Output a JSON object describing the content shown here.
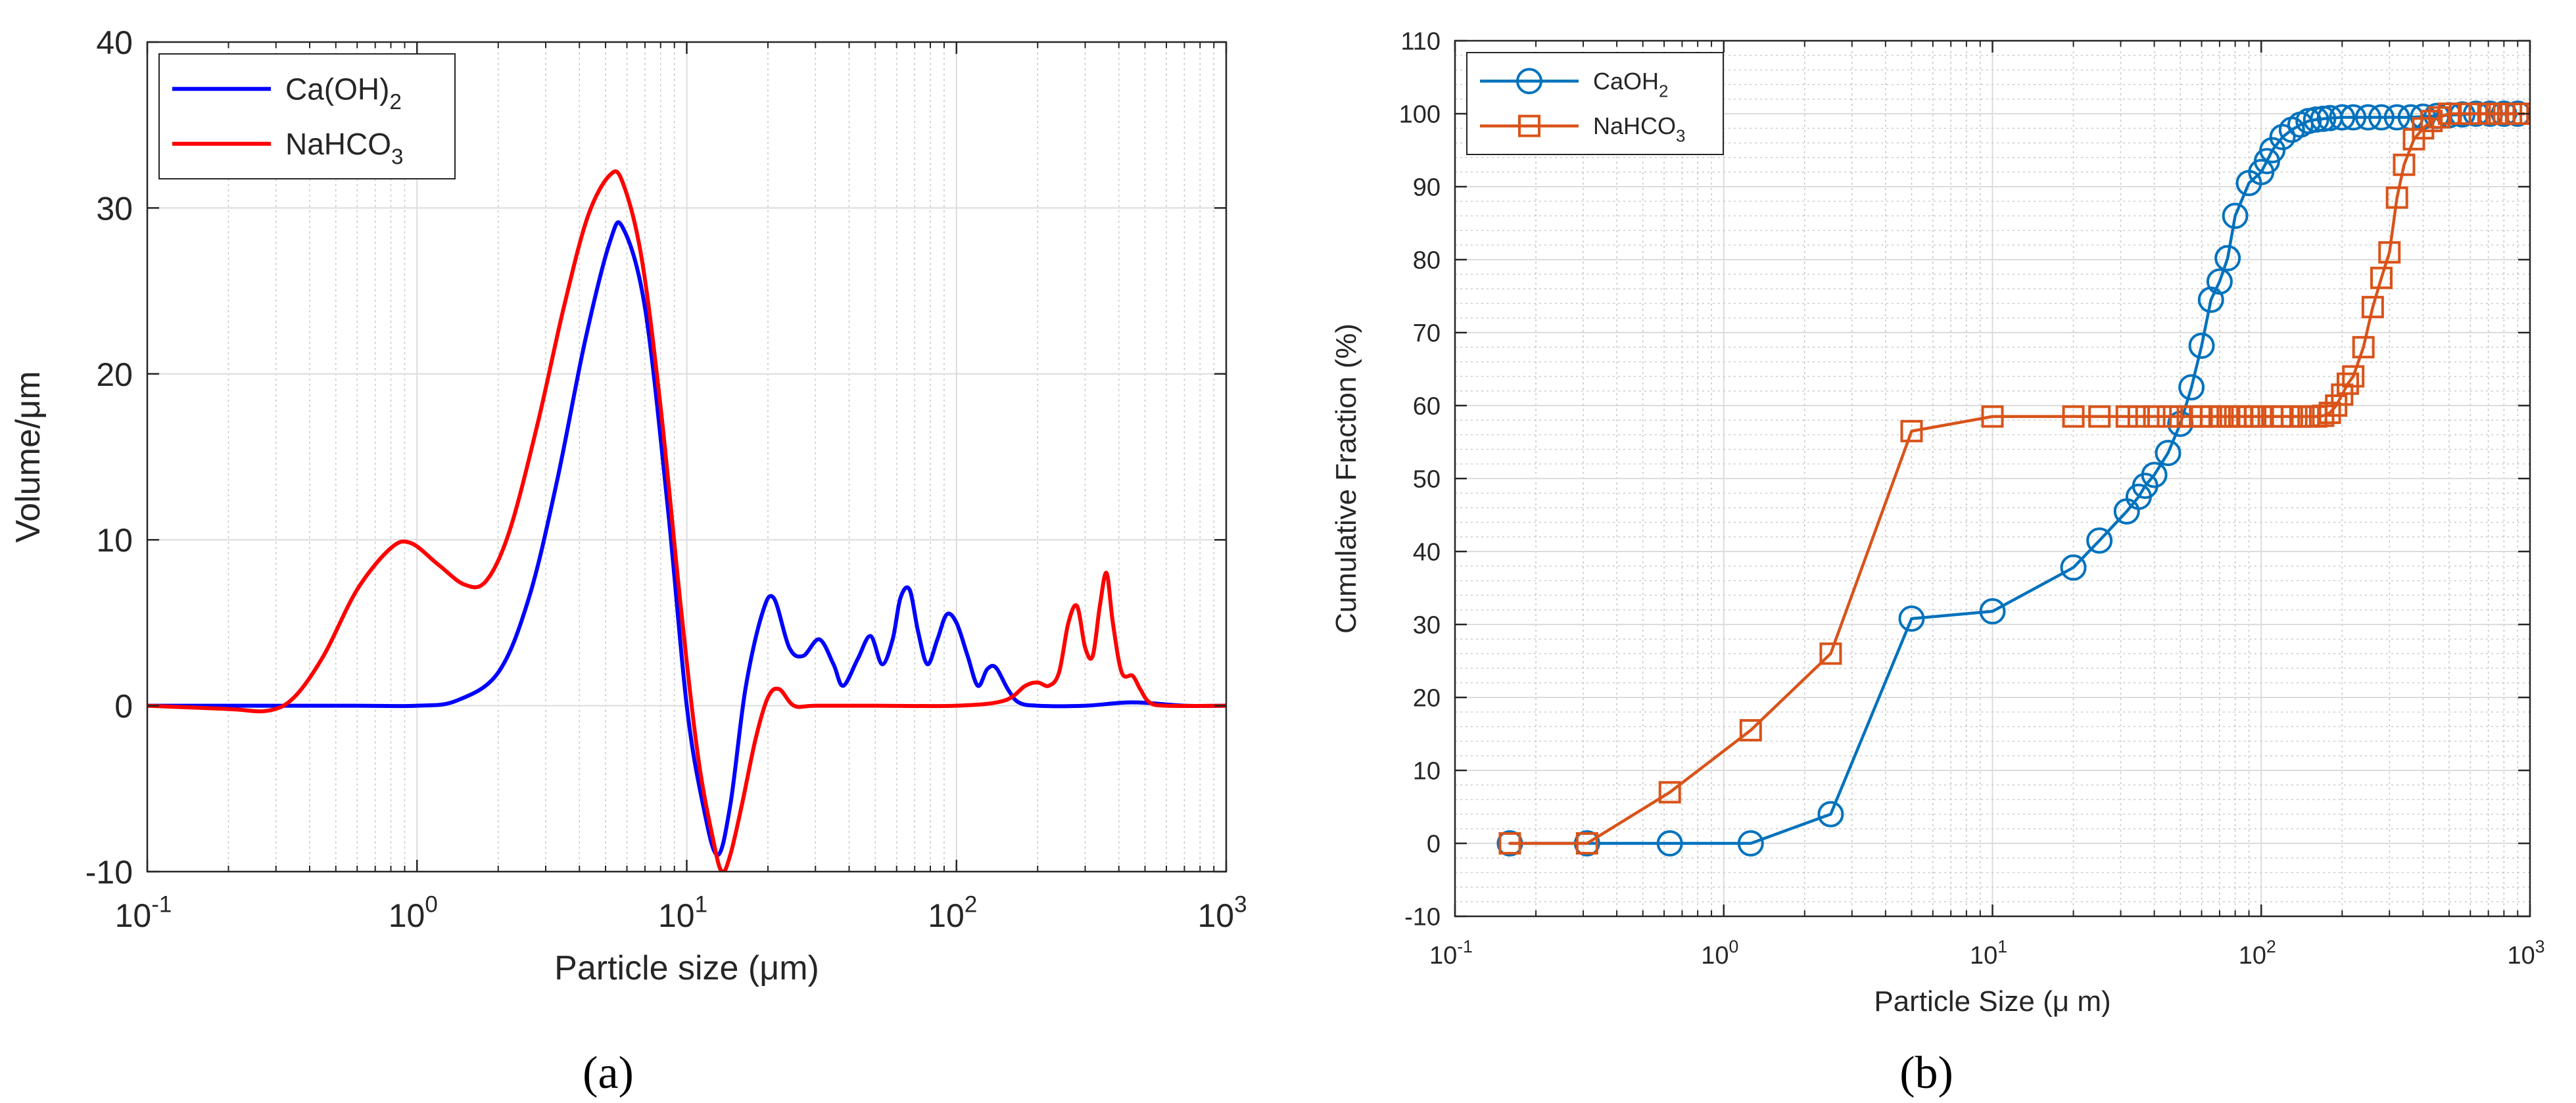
{
  "chart_data": [
    {
      "panel_label": "(a)",
      "type": "line",
      "xscale": "log",
      "xlim": [
        0.1,
        1000
      ],
      "ylim": [
        -10,
        40
      ],
      "yticks": [
        -10,
        0,
        10,
        20,
        30,
        40
      ],
      "xlabel": "Particle size (μm)",
      "ylabel": "Volume/μm",
      "grid": true,
      "legend_position": "top-left",
      "series": [
        {
          "name": "Ca(OH)2",
          "label_main": "Ca(OH)",
          "label_sub": "2",
          "color": "#0000ff",
          "x": [
            0.1,
            0.3,
            0.6,
            1.0,
            1.4,
            2.0,
            2.6,
            3.3,
            4.2,
            5.2,
            5.8,
            7.0,
            8.5,
            10.0,
            11.5,
            13.0,
            14.5,
            16.5,
            19.0,
            21.0,
            24.0,
            27.0,
            31.0,
            35.0,
            38.0,
            43.0,
            48.0,
            53.0,
            58.0,
            62.0,
            67.0,
            72.0,
            78.0,
            85.0,
            92.0,
            100.0,
            110.0,
            120.0,
            130.0,
            140.0,
            155.0,
            170.0,
            200.0,
            300.0,
            450.0,
            700.0,
            1000.0
          ],
          "y": [
            0,
            0,
            0,
            0,
            0.3,
            2.0,
            6.5,
            13.5,
            22.0,
            28.0,
            28.8,
            24.0,
            12.0,
            0.0,
            -6.0,
            -9.0,
            -6.0,
            1.0,
            5.5,
            6.5,
            3.5,
            3.0,
            4.0,
            2.5,
            1.2,
            2.8,
            4.2,
            2.5,
            4.0,
            6.5,
            7.0,
            4.5,
            2.5,
            4.0,
            5.5,
            5.0,
            3.0,
            1.2,
            2.2,
            2.3,
            1.0,
            0.2,
            0,
            0,
            0.2,
            0,
            0
          ]
        },
        {
          "name": "NaHCO3",
          "label_main": "NaHCO",
          "label_sub": "3",
          "color": "#ff0000",
          "x": [
            0.1,
            0.2,
            0.28,
            0.35,
            0.45,
            0.6,
            0.8,
            0.95,
            1.2,
            1.5,
            1.8,
            2.2,
            2.8,
            3.5,
            4.3,
            5.2,
            5.8,
            6.8,
            8.0,
            9.5,
            11.0,
            12.5,
            13.5,
            14.5,
            16.0,
            18.0,
            20.0,
            22.0,
            25.0,
            30.0,
            50.0,
            100.0,
            150.0,
            180.0,
            200.0,
            220.0,
            240.0,
            260.0,
            280.0,
            300.0,
            320.0,
            340.0,
            360.0,
            380.0,
            410.0,
            450.0,
            480.0,
            520.0,
            600.0,
            1000.0
          ],
          "y": [
            0,
            -0.2,
            -0.3,
            0.5,
            3.0,
            7.0,
            9.5,
            9.8,
            8.5,
            7.3,
            7.5,
            10.5,
            17.0,
            24.0,
            29.5,
            32.0,
            31.5,
            27.0,
            18.0,
            6.0,
            -3.0,
            -8.0,
            -10.0,
            -9.0,
            -6.0,
            -2.0,
            0.5,
            1.0,
            0.0,
            0,
            0,
            0,
            0.3,
            1.2,
            1.4,
            1.2,
            2.0,
            5.0,
            6.0,
            3.5,
            3.0,
            6.0,
            8.0,
            5.0,
            2.0,
            1.8,
            1.0,
            0.2,
            0,
            0
          ]
        }
      ]
    },
    {
      "panel_label": "(b)",
      "type": "line",
      "xscale": "log",
      "xlim": [
        0.1,
        1000
      ],
      "ylim": [
        -10,
        110
      ],
      "yticks": [
        -10,
        0,
        10,
        20,
        30,
        40,
        50,
        60,
        70,
        80,
        90,
        100,
        110
      ],
      "xlabel": "Particle Size (μ m)",
      "ylabel": "Cumulative Fraction (%)",
      "grid": true,
      "legend_position": "top-left",
      "series": [
        {
          "name": "CaOH2",
          "label_main": "CaOH",
          "label_sub": "2",
          "color": "#0072bd",
          "marker": "circle",
          "x": [
            0.16,
            0.31,
            0.63,
            1.26,
            2.5,
            5.0,
            10,
            20,
            25,
            31.6,
            35,
            37,
            40,
            45,
            50,
            55,
            60,
            65,
            70,
            75,
            80,
            90,
            100,
            105,
            110,
            120,
            130,
            140,
            150,
            160,
            170,
            180,
            200,
            220,
            250,
            280,
            320,
            360,
            400,
            450,
            500,
            560,
            630,
            710,
            800,
            900
          ],
          "y": [
            0,
            0,
            0,
            0,
            4,
            30.8,
            31.8,
            37.8,
            41.5,
            45.5,
            47.5,
            49.0,
            50.5,
            53.5,
            57.5,
            62.5,
            68.2,
            74.5,
            77.0,
            80.2,
            86.0,
            90.5,
            92.0,
            93.5,
            95.0,
            96.8,
            97.8,
            98.5,
            99.0,
            99.2,
            99.3,
            99.4,
            99.5,
            99.5,
            99.5,
            99.5,
            99.5,
            99.5,
            99.6,
            99.7,
            99.8,
            99.9,
            100,
            100,
            100,
            100
          ]
        },
        {
          "name": "NaHCO3",
          "label_main": "NaHCO",
          "label_sub": "3",
          "color": "#d95319",
          "marker": "square",
          "x": [
            0.16,
            0.31,
            0.63,
            1.26,
            2.5,
            5.0,
            10,
            20,
            25,
            31.6,
            35,
            40,
            45,
            50,
            55,
            60,
            65,
            70,
            75,
            80,
            85,
            90,
            95,
            100,
            110,
            120,
            130,
            140,
            150,
            160,
            170,
            180,
            190,
            200,
            210,
            220,
            240,
            260,
            280,
            300,
            320,
            340,
            370,
            400,
            430,
            460,
            500,
            550,
            600,
            650,
            700,
            750,
            800,
            850,
            900,
            950
          ],
          "y": [
            0,
            0,
            7,
            15.5,
            26,
            56.5,
            58.5,
            58.5,
            58.5,
            58.5,
            58.5,
            58.5,
            58.5,
            58.5,
            58.5,
            58.5,
            58.5,
            58.5,
            58.5,
            58.5,
            58.5,
            58.5,
            58.5,
            58.5,
            58.5,
            58.5,
            58.5,
            58.5,
            58.5,
            58.5,
            58.6,
            59.0,
            60.0,
            61.5,
            63.0,
            64.0,
            68.0,
            73.5,
            77.5,
            81.0,
            88.5,
            93.0,
            96.5,
            98.0,
            99.0,
            99.5,
            100,
            100,
            100,
            100,
            100,
            100,
            100,
            100,
            100,
            100
          ]
        }
      ]
    }
  ]
}
